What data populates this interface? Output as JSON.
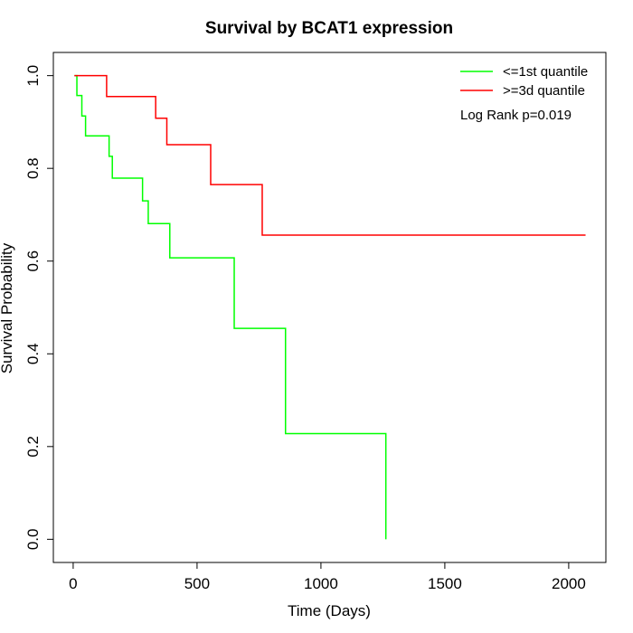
{
  "chart_data": {
    "type": "line",
    "title": "Survival by BCAT1 expression",
    "xlabel": "Time (Days)",
    "ylabel": "Survival Probability",
    "xlim": [
      -80,
      2150
    ],
    "ylim": [
      -0.05,
      1.05
    ],
    "x_ticks": [
      0,
      500,
      1000,
      1500,
      2000
    ],
    "y_ticks": [
      0.0,
      0.2,
      0.4,
      0.6,
      0.8,
      1.0
    ],
    "x_tick_labels": [
      "0",
      "500",
      "1000",
      "1500",
      "2000"
    ],
    "y_tick_labels": [
      "0.0",
      "0.2",
      "0.4",
      "0.6",
      "0.8",
      "1.0"
    ],
    "legend_position": "top-right",
    "annotation": "Log Rank p=0.019",
    "series": [
      {
        "name": "<=1st quantile",
        "color": "#00ff00",
        "steps": [
          [
            5,
            1.0
          ],
          [
            15,
            0.957
          ],
          [
            35,
            0.913
          ],
          [
            50,
            0.87
          ],
          [
            145,
            0.826
          ],
          [
            158,
            0.779
          ],
          [
            280,
            0.73
          ],
          [
            303,
            0.681
          ],
          [
            390,
            0.607
          ],
          [
            650,
            0.455
          ],
          [
            857,
            0.228
          ],
          [
            1262,
            0.0
          ]
        ]
      },
      {
        "name": ">=3d quantile",
        "color": "#ff0000",
        "steps": [
          [
            5,
            1.0
          ],
          [
            135,
            0.955
          ],
          [
            333,
            0.908
          ],
          [
            378,
            0.851
          ],
          [
            555,
            0.765
          ],
          [
            763,
            0.656
          ],
          [
            2068,
            0.656
          ]
        ]
      }
    ]
  }
}
